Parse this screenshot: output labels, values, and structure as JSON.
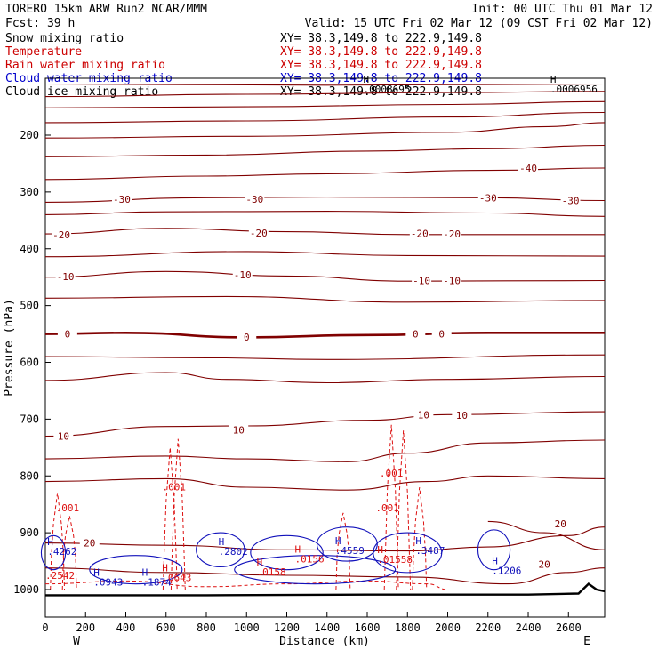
{
  "header": {
    "model_line": "TORERO  15km ARW   Run2    NCAR/MMM",
    "init_line": "Init: 00 UTC Thu 01 Mar 12",
    "fcst_line": "Fcst:   39 h",
    "valid_line": "Valid: 15 UTC Fri 02 Mar 12 (09 CST Fri 02 Mar 12)"
  },
  "fields": [
    {
      "name": "Snow mixing ratio",
      "xy": "XY=  38.3,149.8 to 222.9,149.8",
      "color": "#000000"
    },
    {
      "name": "Temperature",
      "xy": "XY=  38.3,149.8 to 222.9,149.8",
      "color": "#cc0000"
    },
    {
      "name": "Rain water mixing ratio",
      "xy": "XY=  38.3,149.8 to 222.9,149.8",
      "color": "#cc0000"
    },
    {
      "name": "Cloud water mixing ratio",
      "xy": "XY=  38.3,149.8 to 222.9,149.8",
      "color": "#0000cc"
    },
    {
      "name": "Cloud ice mixing ratio",
      "xy": "XY=  38.3,149.8 to 222.9,149.8",
      "color": "#000000"
    }
  ],
  "colors": {
    "temperature": "#800000",
    "rain": "#dd1111",
    "cloud_water": "#1111bb",
    "terrain": "#000000",
    "frame": "#000000"
  },
  "chart_data": {
    "type": "line",
    "xlabel": "Distance (km)",
    "ylabel": "Pressure (hPa)",
    "x_ticks": [
      0,
      200,
      400,
      600,
      800,
      1000,
      1200,
      1400,
      1600,
      1800,
      2000,
      2200,
      2400,
      2600
    ],
    "y_ticks": [
      200,
      300,
      400,
      500,
      600,
      700,
      800,
      900,
      1000
    ],
    "xlim": [
      0,
      2780
    ],
    "ylim": [
      1050,
      100
    ],
    "x_end_labels": {
      "west": "W",
      "east": "E"
    },
    "temperature_contour_labels": [
      {
        "text": "-40",
        "x": 2400,
        "p": 258
      },
      {
        "text": "-30",
        "x": 380,
        "p": 313
      },
      {
        "text": "-30",
        "x": 1040,
        "p": 313
      },
      {
        "text": "-30",
        "x": 2200,
        "p": 310
      },
      {
        "text": "-30",
        "x": 2610,
        "p": 315
      },
      {
        "text": "-20",
        "x": 80,
        "p": 375
      },
      {
        "text": "-20",
        "x": 1060,
        "p": 372
      },
      {
        "text": "-20",
        "x": 1860,
        "p": 373
      },
      {
        "text": "-20",
        "x": 2020,
        "p": 374
      },
      {
        "text": "-10",
        "x": 100,
        "p": 449
      },
      {
        "text": "-10",
        "x": 980,
        "p": 446
      },
      {
        "text": "-10",
        "x": 1870,
        "p": 456
      },
      {
        "text": "-10",
        "x": 2020,
        "p": 456
      },
      {
        "text": "0",
        "x": 110,
        "p": 550
      },
      {
        "text": "0",
        "x": 1000,
        "p": 555
      },
      {
        "text": "0",
        "x": 1840,
        "p": 550
      },
      {
        "text": "0",
        "x": 1970,
        "p": 550
      },
      {
        "text": "10",
        "x": 90,
        "p": 730
      },
      {
        "text": "10",
        "x": 960,
        "p": 719
      },
      {
        "text": "10",
        "x": 1880,
        "p": 692
      },
      {
        "text": "10",
        "x": 2070,
        "p": 693
      },
      {
        "text": "20",
        "x": 220,
        "p": 918
      },
      {
        "text": "20",
        "x": 2560,
        "p": 884
      },
      {
        "text": "20",
        "x": 2480,
        "p": 955
      }
    ],
    "rain_labels": [
      {
        "text": ".001",
        "x": 110,
        "p": 856
      },
      {
        "text": ".001",
        "x": 640,
        "p": 819
      },
      {
        "text": ".001",
        "x": 1720,
        "p": 795
      },
      {
        "text": ".001",
        "x": 1700,
        "p": 856
      }
    ],
    "extrema_labels": [
      {
        "text": "H",
        "x": 10,
        "p": 922,
        "value": ".4262",
        "color": "#1111bb"
      },
      {
        "text": "",
        "x": 0,
        "p": 964,
        "value": ".2542",
        "color": "#dd1111"
      },
      {
        "text": "H",
        "x": 240,
        "p": 976,
        "value": ".0943",
        "color": "#1111bb"
      },
      {
        "text": "H",
        "x": 480,
        "p": 976,
        "value": ".1874",
        "color": "#1111bb"
      },
      {
        "text": "H",
        "x": 580,
        "p": 968,
        "value": ".0643",
        "color": "#dd1111"
      },
      {
        "text": "H",
        "x": 860,
        "p": 922,
        "value": ".2802",
        "color": "#1111bb"
      },
      {
        "text": "H",
        "x": 1050,
        "p": 958,
        "value": ".0158",
        "color": "#dd1111"
      },
      {
        "text": "H",
        "x": 1240,
        "p": 935,
        "value": ".0156",
        "color": "#dd1111"
      },
      {
        "text": "H",
        "x": 1440,
        "p": 920,
        "value": ".4559",
        "color": "#1111bb"
      },
      {
        "text": "H",
        "x": 1650,
        "p": 936,
        "value": ".01558",
        "color": "#dd1111"
      },
      {
        "text": "H",
        "x": 1840,
        "p": 920,
        "value": ".3487",
        "color": "#1111bb"
      },
      {
        "text": "H",
        "x": 2220,
        "p": 955,
        "value": ".1206",
        "color": "#1111bb"
      },
      {
        "text": "H",
        "x": 1580,
        "p": 108,
        "value": ".0008695",
        "color": "#000000"
      },
      {
        "text": "H",
        "x": 2510,
        "p": 108,
        "value": ".0006956",
        "color": "#000000"
      }
    ],
    "temperature_contours": [
      {
        "label": "top1",
        "pts": [
          [
            0,
            110
          ],
          [
            1400,
            112
          ],
          [
            2780,
            110
          ]
        ]
      },
      {
        "label": "top2",
        "pts": [
          [
            0,
            132
          ],
          [
            1000,
            128
          ],
          [
            2000,
            125
          ],
          [
            2780,
            123
          ]
        ]
      },
      {
        "label": "top3",
        "pts": [
          [
            0,
            152
          ],
          [
            1000,
            150
          ],
          [
            2000,
            146
          ],
          [
            2780,
            141
          ]
        ]
      },
      {
        "label": "top4",
        "pts": [
          [
            0,
            178
          ],
          [
            1000,
            175
          ],
          [
            2000,
            168
          ],
          [
            2780,
            160
          ]
        ]
      },
      {
        "label": "top5",
        "pts": [
          [
            0,
            205
          ],
          [
            1000,
            202
          ],
          [
            2000,
            195
          ],
          [
            2500,
            185
          ],
          [
            2780,
            178
          ]
        ]
      },
      {
        "label": "-40",
        "pts": [
          [
            0,
            238
          ],
          [
            800,
            235
          ],
          [
            1600,
            228
          ],
          [
            2200,
            224
          ],
          [
            2780,
            218
          ]
        ]
      },
      {
        "label": "-35",
        "pts": [
          [
            0,
            278
          ],
          [
            800,
            272
          ],
          [
            1400,
            268
          ],
          [
            2200,
            262
          ],
          [
            2780,
            258
          ]
        ]
      },
      {
        "label": "-30",
        "pts": [
          [
            0,
            318
          ],
          [
            800,
            310
          ],
          [
            1400,
            309
          ],
          [
            2200,
            310
          ],
          [
            2780,
            315
          ]
        ]
      },
      {
        "label": "-25",
        "pts": [
          [
            0,
            340
          ],
          [
            600,
            335
          ],
          [
            1400,
            334
          ],
          [
            2200,
            337
          ],
          [
            2780,
            343
          ]
        ]
      },
      {
        "label": "-20",
        "pts": [
          [
            0,
            374
          ],
          [
            600,
            364
          ],
          [
            1200,
            370
          ],
          [
            1800,
            375
          ],
          [
            2780,
            375
          ]
        ]
      },
      {
        "label": "-15",
        "pts": [
          [
            0,
            414
          ],
          [
            1000,
            405
          ],
          [
            1800,
            412
          ],
          [
            2780,
            413
          ]
        ]
      },
      {
        "label": "-10",
        "pts": [
          [
            0,
            450
          ],
          [
            600,
            440
          ],
          [
            1200,
            448
          ],
          [
            1800,
            457
          ],
          [
            2780,
            456
          ]
        ]
      },
      {
        "label": "-5",
        "pts": [
          [
            0,
            487
          ],
          [
            900,
            484
          ],
          [
            1800,
            494
          ],
          [
            2780,
            491
          ]
        ]
      },
      {
        "label": "0",
        "bold": true,
        "pts": [
          [
            0,
            550
          ],
          [
            400,
            548
          ],
          [
            1000,
            556
          ],
          [
            1600,
            552
          ],
          [
            2200,
            548
          ],
          [
            2780,
            548
          ]
        ]
      },
      {
        "label": "5",
        "pts": [
          [
            0,
            590
          ],
          [
            800,
            592
          ],
          [
            1400,
            595
          ],
          [
            2780,
            587
          ]
        ]
      },
      {
        "label": "7",
        "pts": [
          [
            0,
            632
          ],
          [
            600,
            618
          ],
          [
            900,
            630
          ],
          [
            1400,
            636
          ],
          [
            2000,
            630
          ],
          [
            2780,
            625
          ]
        ]
      },
      {
        "label": "10",
        "pts": [
          [
            0,
            730
          ],
          [
            600,
            713
          ],
          [
            1000,
            712
          ],
          [
            1600,
            702
          ],
          [
            2000,
            692
          ],
          [
            2780,
            687
          ]
        ]
      },
      {
        "label": "12",
        "pts": [
          [
            0,
            770
          ],
          [
            600,
            765
          ],
          [
            1000,
            770
          ],
          [
            1500,
            775
          ],
          [
            1800,
            760
          ],
          [
            2200,
            742
          ],
          [
            2780,
            737
          ]
        ]
      },
      {
        "label": "15",
        "pts": [
          [
            0,
            810
          ],
          [
            600,
            805
          ],
          [
            1000,
            820
          ],
          [
            1500,
            825
          ],
          [
            1900,
            810
          ],
          [
            2200,
            800
          ],
          [
            2780,
            805
          ]
        ]
      },
      {
        "label": "20a",
        "pts": [
          [
            0,
            918
          ],
          [
            600,
            922
          ],
          [
            1200,
            930
          ],
          [
            1800,
            932
          ],
          [
            2200,
            925
          ],
          [
            2600,
            905
          ],
          [
            2780,
            890
          ]
        ]
      },
      {
        "label": "20b",
        "pts": [
          [
            2200,
            880
          ],
          [
            2480,
            900
          ],
          [
            2780,
            930
          ]
        ]
      },
      {
        "label": "22",
        "pts": [
          [
            0,
            962
          ],
          [
            600,
            970
          ],
          [
            1200,
            975
          ],
          [
            1800,
            978
          ],
          [
            2300,
            990
          ],
          [
            2600,
            970
          ],
          [
            2780,
            962
          ]
        ]
      }
    ],
    "terrain": {
      "pts": [
        [
          0,
          1010
        ],
        [
          800,
          1010
        ],
        [
          1600,
          1009
        ],
        [
          2400,
          1009
        ],
        [
          2650,
          1007
        ],
        [
          2700,
          990
        ],
        [
          2740,
          1000
        ],
        [
          2780,
          1003
        ]
      ]
    }
  }
}
